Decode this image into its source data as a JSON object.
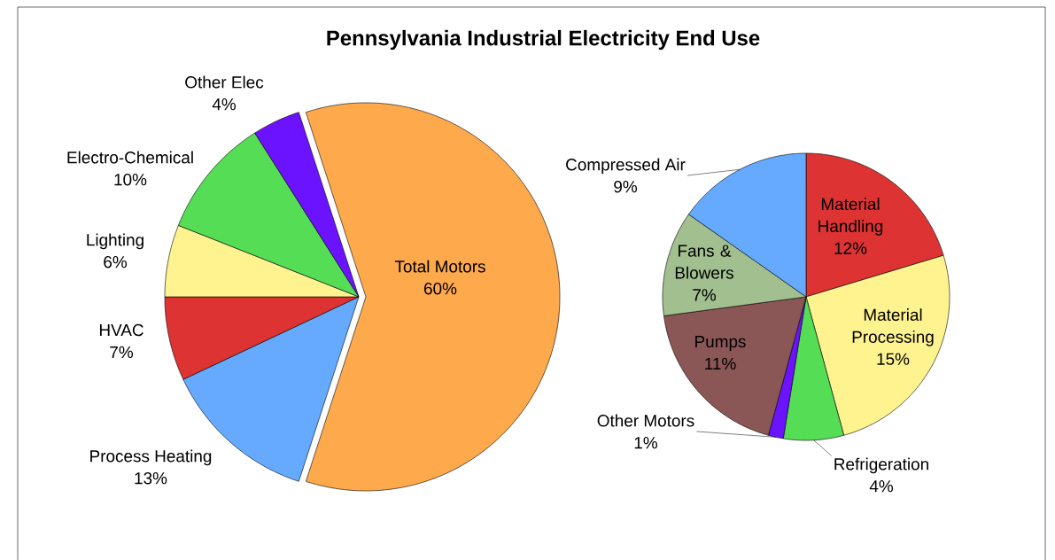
{
  "chart_data": [
    {
      "type": "pie",
      "title": "Pennsylvania Industrial Electricity End Use",
      "categories": [
        "Total Motors",
        "Process Heating",
        "HVAC",
        "Lighting",
        "Electro-Chemical",
        "Other Elec"
      ],
      "values": [
        60,
        13,
        7,
        6,
        10,
        4
      ],
      "value_labels": [
        "60%",
        "13%",
        "7%",
        "6%",
        "10%",
        "4%"
      ],
      "colors": [
        "#ffa94d",
        "#66aaff",
        "#dd3333",
        "#fff38f",
        "#55dd55",
        "#6b12ff"
      ]
    },
    {
      "type": "pie",
      "categories": [
        "Material Handling",
        "Material Processing",
        "Refrigeration",
        "Other Motors",
        "Pumps",
        "Fans & Blowers",
        "Compressed Air"
      ],
      "values": [
        12,
        15,
        4,
        1,
        11,
        7,
        9
      ],
      "value_labels": [
        "12%",
        "15%",
        "4%",
        "1%",
        "11%",
        "7%",
        "9%"
      ],
      "colors": [
        "#dd3333",
        "#fff38f",
        "#55dd55",
        "#6b12ff",
        "#8b5656",
        "#a2bf8f",
        "#66aaff"
      ]
    }
  ]
}
